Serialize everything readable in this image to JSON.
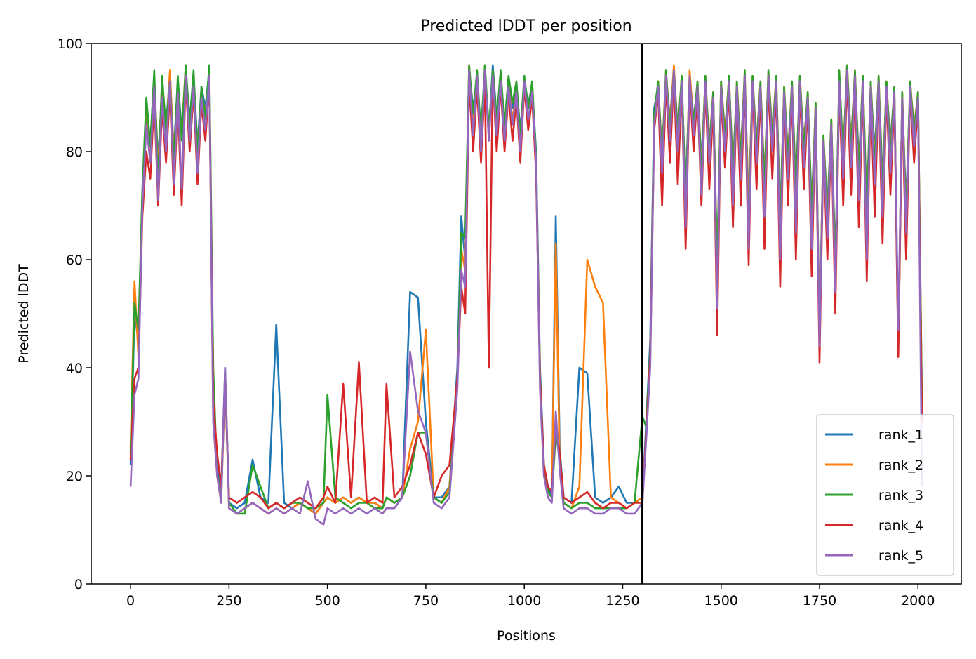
{
  "chart_data": {
    "type": "line",
    "title": "Predicted lDDT per position",
    "xlabel": "Positions",
    "ylabel": "Predicted lDDT",
    "xlim": [
      -100,
      2110
    ],
    "ylim": [
      0,
      100
    ],
    "xticks": [
      0,
      250,
      500,
      750,
      1000,
      1250,
      1500,
      1750,
      2000
    ],
    "yticks": [
      0,
      20,
      40,
      60,
      80,
      100
    ],
    "xtick_labels": [
      "0",
      "250",
      "500",
      "750",
      "1000",
      "1250",
      "1500",
      "1750",
      "2000"
    ],
    "ytick_labels": [
      "0",
      "20",
      "40",
      "60",
      "80",
      "100"
    ],
    "grid": false,
    "legend_position": "lower-right",
    "vline_x": 1300,
    "vline_color": "#000000",
    "x": [
      0,
      10,
      20,
      30,
      40,
      50,
      60,
      70,
      80,
      90,
      100,
      110,
      120,
      130,
      140,
      150,
      160,
      170,
      180,
      190,
      200,
      210,
      220,
      230,
      240,
      250,
      270,
      290,
      310,
      330,
      350,
      370,
      390,
      410,
      430,
      450,
      470,
      490,
      500,
      520,
      540,
      560,
      580,
      600,
      620,
      640,
      650,
      670,
      690,
      710,
      730,
      750,
      770,
      790,
      810,
      830,
      840,
      850,
      860,
      870,
      880,
      890,
      900,
      910,
      920,
      930,
      940,
      950,
      960,
      970,
      980,
      990,
      1000,
      1010,
      1020,
      1030,
      1040,
      1050,
      1060,
      1070,
      1080,
      1090,
      1100,
      1120,
      1140,
      1160,
      1180,
      1200,
      1220,
      1240,
      1260,
      1280,
      1300,
      1310,
      1320,
      1330,
      1340,
      1350,
      1360,
      1370,
      1380,
      1390,
      1400,
      1410,
      1420,
      1430,
      1440,
      1450,
      1460,
      1470,
      1480,
      1490,
      1500,
      1510,
      1520,
      1530,
      1540,
      1550,
      1560,
      1570,
      1580,
      1590,
      1600,
      1610,
      1620,
      1630,
      1640,
      1650,
      1660,
      1670,
      1680,
      1690,
      1700,
      1710,
      1720,
      1730,
      1740,
      1750,
      1760,
      1770,
      1780,
      1790,
      1800,
      1810,
      1820,
      1830,
      1840,
      1850,
      1860,
      1870,
      1880,
      1890,
      1900,
      1910,
      1920,
      1930,
      1940,
      1950,
      1960,
      1970,
      1980,
      1990,
      2000,
      2010
    ],
    "series": [
      {
        "name": "rank_1",
        "color": "#1f77b4",
        "values": [
          22,
          50,
          45,
          72,
          88,
          82,
          93,
          78,
          92,
          85,
          94,
          80,
          93,
          84,
          95,
          86,
          94,
          81,
          92,
          88,
          95,
          32,
          22,
          17,
          40,
          15,
          14,
          15,
          23,
          16,
          15,
          48,
          15,
          14,
          15,
          14,
          13,
          15,
          16,
          15,
          16,
          15,
          16,
          15,
          15,
          14,
          16,
          15,
          16,
          54,
          53,
          30,
          16,
          16,
          18,
          40,
          68,
          60,
          95,
          88,
          93,
          84,
          95,
          83,
          96,
          86,
          94,
          85,
          93,
          88,
          92,
          84,
          93,
          89,
          92,
          80,
          40,
          22,
          18,
          16,
          68,
          25,
          16,
          15,
          40,
          39,
          16,
          15,
          16,
          18,
          15,
          15,
          16,
          30,
          45,
          88,
          92,
          80,
          94,
          86,
          95,
          84,
          93,
          72,
          94,
          86,
          92,
          78,
          93,
          82,
          90,
          60,
          92,
          84,
          93,
          77,
          92,
          80,
          94,
          70,
          93,
          82,
          92,
          75,
          94,
          84,
          93,
          68,
          91,
          80,
          92,
          74,
          93,
          82,
          90,
          70,
          88,
          48,
          82,
          70,
          85,
          60,
          93,
          80,
          95,
          82,
          94,
          78,
          93,
          70,
          92,
          80,
          93,
          75,
          92,
          82,
          91,
          45,
          90,
          70,
          92,
          85,
          90,
          35
        ]
      },
      {
        "name": "rank_2",
        "color": "#ff7f0e",
        "values": [
          25,
          56,
          42,
          71,
          89,
          80,
          94,
          76,
          93,
          83,
          95,
          79,
          92,
          83,
          96,
          84,
          93,
          80,
          91,
          87,
          94,
          30,
          20,
          15,
          38,
          14,
          13,
          14,
          15,
          14,
          13,
          14,
          13,
          14,
          15,
          14,
          13,
          15,
          16,
          15,
          16,
          15,
          16,
          15,
          15,
          14,
          16,
          15,
          16,
          25,
          30,
          47,
          16,
          15,
          18,
          38,
          62,
          58,
          96,
          86,
          94,
          82,
          96,
          82,
          95,
          85,
          93,
          84,
          92,
          86,
          91,
          82,
          92,
          88,
          91,
          78,
          38,
          20,
          17,
          16,
          63,
          22,
          15,
          14,
          18,
          60,
          55,
          52,
          16,
          15,
          14,
          15,
          16,
          28,
          42,
          86,
          93,
          79,
          95,
          85,
          96,
          83,
          94,
          70,
          95,
          85,
          93,
          76,
          94,
          81,
          91,
          58,
          93,
          83,
          94,
          75,
          93,
          79,
          95,
          68,
          94,
          81,
          93,
          74,
          95,
          83,
          94,
          66,
          92,
          79,
          93,
          72,
          94,
          81,
          91,
          68,
          89,
          46,
          83,
          68,
          86,
          58,
          94,
          79,
          96,
          81,
          95,
          76,
          94,
          68,
          93,
          78,
          94,
          73,
          93,
          80,
          92,
          44,
          91,
          68,
          93,
          84,
          91,
          33
        ]
      },
      {
        "name": "rank_3",
        "color": "#2ca02c",
        "values": [
          24,
          52,
          47,
          73,
          90,
          81,
          95,
          74,
          94,
          84,
          93,
          78,
          94,
          82,
          96,
          85,
          95,
          79,
          92,
          86,
          96,
          40,
          20,
          16,
          39,
          15,
          13,
          13,
          22,
          18,
          14,
          15,
          14,
          15,
          15,
          14,
          14,
          15,
          35,
          16,
          15,
          14,
          15,
          15,
          14,
          14,
          16,
          15,
          16,
          20,
          28,
          28,
          16,
          15,
          17,
          37,
          65,
          64,
          96,
          87,
          95,
          83,
          96,
          84,
          95,
          86,
          95,
          85,
          94,
          89,
          93,
          83,
          94,
          88,
          93,
          79,
          39,
          21,
          17,
          16,
          28,
          23,
          15,
          14,
          15,
          15,
          14,
          14,
          14,
          14,
          14,
          15,
          31,
          29,
          43,
          87,
          93,
          78,
          95,
          84,
          95,
          83,
          94,
          71,
          93,
          85,
          93,
          75,
          94,
          80,
          91,
          57,
          93,
          82,
          94,
          74,
          93,
          78,
          95,
          64,
          94,
          80,
          93,
          73,
          95,
          82,
          94,
          65,
          92,
          78,
          93,
          71,
          94,
          80,
          91,
          67,
          89,
          45,
          83,
          67,
          86,
          57,
          95,
          78,
          96,
          80,
          95,
          75,
          94,
          67,
          93,
          77,
          94,
          72,
          93,
          79,
          92,
          43,
          91,
          67,
          93,
          83,
          91,
          32
        ]
      },
      {
        "name": "rank_4",
        "color": "#d62728",
        "values": [
          23,
          38,
          40,
          68,
          80,
          75,
          90,
          70,
          88,
          78,
          91,
          72,
          89,
          70,
          93,
          80,
          91,
          74,
          89,
          82,
          93,
          34,
          24,
          18,
          38,
          16,
          15,
          16,
          17,
          16,
          14,
          15,
          14,
          15,
          16,
          15,
          14,
          16,
          18,
          15,
          37,
          16,
          41,
          15,
          16,
          15,
          37,
          16,
          18,
          22,
          28,
          24,
          16,
          20,
          22,
          38,
          55,
          50,
          93,
          80,
          92,
          78,
          93,
          40,
          94,
          80,
          92,
          80,
          91,
          82,
          90,
          78,
          92,
          84,
          90,
          76,
          38,
          22,
          18,
          17,
          30,
          24,
          16,
          15,
          16,
          17,
          15,
          14,
          15,
          15,
          14,
          15,
          15,
          28,
          42,
          84,
          91,
          70,
          93,
          78,
          94,
          74,
          92,
          62,
          93,
          80,
          91,
          70,
          92,
          73,
          89,
          46,
          91,
          77,
          92,
          66,
          91,
          70,
          93,
          59,
          92,
          73,
          91,
          62,
          93,
          75,
          92,
          55,
          90,
          70,
          91,
          60,
          92,
          73,
          89,
          57,
          87,
          41,
          81,
          60,
          84,
          50,
          92,
          70,
          94,
          72,
          93,
          66,
          92,
          56,
          91,
          68,
          92,
          63,
          91,
          72,
          90,
          42,
          89,
          60,
          91,
          78,
          89,
          30
        ]
      },
      {
        "name": "rank_5",
        "color": "#9467bd",
        "values": [
          18,
          35,
          38,
          70,
          85,
          78,
          92,
          71,
          90,
          80,
          93,
          74,
          91,
          73,
          94,
          82,
          92,
          76,
          90,
          84,
          94,
          30,
          20,
          15,
          40,
          14,
          13,
          14,
          15,
          14,
          13,
          14,
          13,
          14,
          13,
          19,
          12,
          11,
          14,
          13,
          14,
          13,
          14,
          13,
          14,
          13,
          14,
          14,
          16,
          43,
          32,
          28,
          15,
          14,
          16,
          36,
          58,
          55,
          95,
          83,
          94,
          80,
          95,
          82,
          94,
          83,
          93,
          82,
          92,
          85,
          91,
          80,
          93,
          86,
          91,
          78,
          36,
          20,
          16,
          15,
          32,
          21,
          14,
          13,
          14,
          14,
          13,
          13,
          14,
          14,
          13,
          13,
          15,
          27,
          40,
          85,
          92,
          76,
          94,
          82,
          95,
          80,
          93,
          66,
          94,
          83,
          92,
          72,
          93,
          78,
          90,
          51,
          92,
          80,
          93,
          70,
          92,
          75,
          94,
          62,
          93,
          78,
          92,
          68,
          94,
          80,
          93,
          60,
          91,
          75,
          92,
          65,
          93,
          77,
          90,
          62,
          88,
          44,
          82,
          64,
          85,
          54,
          93,
          75,
          95,
          77,
          94,
          71,
          93,
          60,
          92,
          74,
          93,
          68,
          92,
          76,
          91,
          47,
          90,
          65,
          92,
          81,
          90,
          18
        ]
      }
    ]
  }
}
